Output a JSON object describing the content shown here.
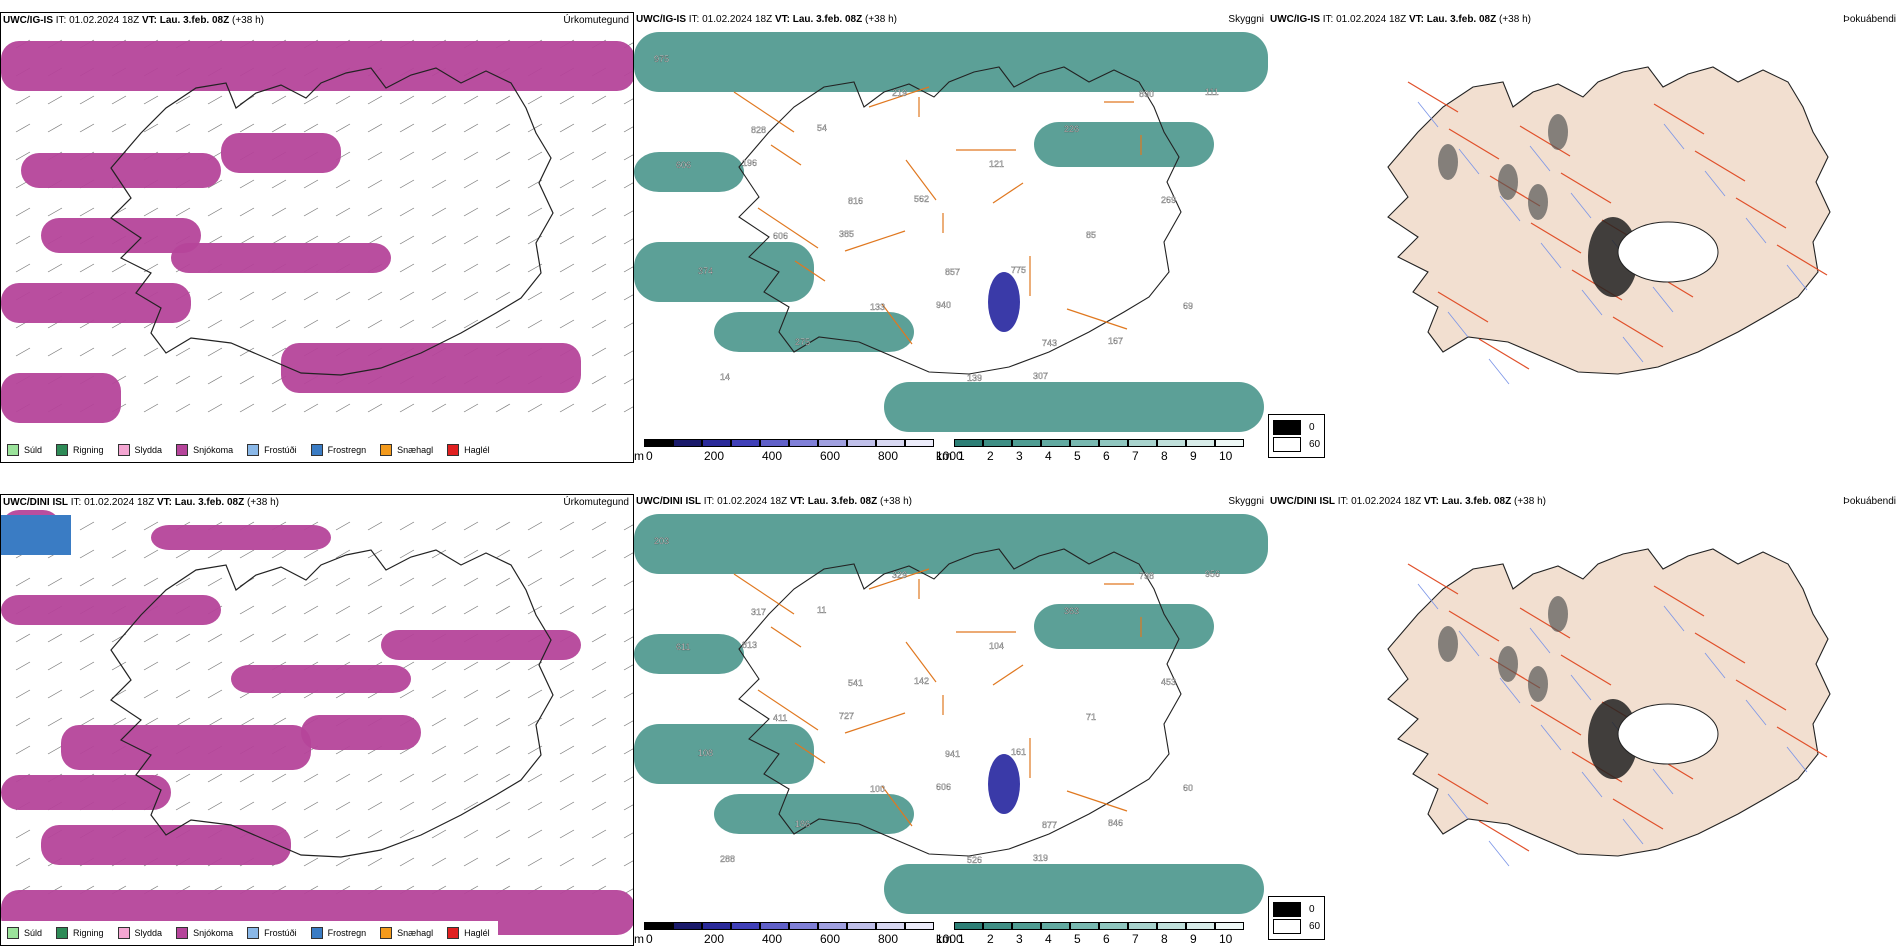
{
  "rows": [
    {
      "precip": {
        "model": "UWC/IG-IS",
        "it_label": "IT: 01.02.2024 18Z",
        "vt_label": "VT: Lau. 3.feb. 08Z",
        "lead": "(+38 h)",
        "name": "Úrkomutegund"
      },
      "vis": {
        "model": "UWC/IG-IS",
        "it_label": "IT: 01.02.2024 18Z",
        "vt_label": "VT: Lau. 3.feb. 08Z",
        "lead": "(+38 h)",
        "name": "Skyggni",
        "labels": [
          "975",
          "828",
          "816",
          "857",
          "743",
          "890",
          "606",
          "606",
          "133",
          "139",
          "226",
          "269",
          "374",
          "275",
          "219",
          "121",
          "85",
          "69",
          "14",
          "54",
          "562",
          "775",
          "167",
          "111",
          "196",
          "385",
          "940",
          "307"
        ]
      },
      "fog": {
        "model": "UWC/IG-IS",
        "it_label": "IT: 01.02.2024 18Z",
        "vt_label": "VT: Lau. 3.feb. 08Z",
        "lead": "(+38 h)",
        "name": "Þokuábendi"
      }
    },
    {
      "precip": {
        "model": "UWC/DINI ISL",
        "it_label": "IT: 01.02.2024 18Z",
        "vt_label": "VT: Lau. 3.feb. 08Z",
        "lead": "(+38 h)",
        "name": "Úrkomutegund"
      },
      "vis": {
        "model": "UWC/DINI ISL",
        "it_label": "IT: 01.02.2024 18Z",
        "vt_label": "VT: Lau. 3.feb. 08Z",
        "lead": "(+38 h)",
        "name": "Skyggni",
        "labels": [
          "203",
          "317",
          "541",
          "941",
          "877",
          "798",
          "611",
          "411",
          "100",
          "526",
          "363",
          "453",
          "108",
          "186",
          "329",
          "104",
          "71",
          "60",
          "288",
          "11",
          "142",
          "161",
          "846",
          "956",
          "813",
          "727",
          "606",
          "319"
        ]
      },
      "fog": {
        "model": "UWC/DINI ISL",
        "it_label": "IT: 01.02.2024 18Z",
        "vt_label": "VT: Lau. 3.feb. 08Z",
        "lead": "(+38 h)",
        "name": "Þokuábendi"
      }
    }
  ],
  "precip_legend": [
    {
      "label": "Súld",
      "color": "#9be39b"
    },
    {
      "label": "Rigning",
      "color": "#2e8b57"
    },
    {
      "label": "Slydda",
      "color": "#f4a6d2"
    },
    {
      "label": "Snjókoma",
      "color": "#b5449a"
    },
    {
      "label": "Frostúði",
      "color": "#8ab8e8"
    },
    {
      "label": "Frostregn",
      "color": "#3a7cc4"
    },
    {
      "label": "Snæhagl",
      "color": "#f39a1c"
    },
    {
      "label": "Haglél",
      "color": "#e02020"
    }
  ],
  "vis_scale": {
    "m_unit": "m",
    "m_ticks": [
      "0",
      "200",
      "400",
      "600",
      "800",
      "1000"
    ],
    "km_unit": "km",
    "km_ticks": [
      "1",
      "2",
      "3",
      "4",
      "5",
      "6",
      "7",
      "8",
      "9",
      "10"
    ]
  },
  "fog_legend": [
    {
      "label": "0",
      "color": "#000000"
    },
    {
      "label": "60",
      "color": "#ffffff"
    }
  ],
  "colors": {
    "snow": "#b5449a",
    "vis_teal": "#3f8f85",
    "vis_blue": "#3a3aa8",
    "roads": "#e07820",
    "fog_land": "#f2dfd0",
    "fog_roads": "#e0502a",
    "fog_rivers": "#7a94e8"
  }
}
